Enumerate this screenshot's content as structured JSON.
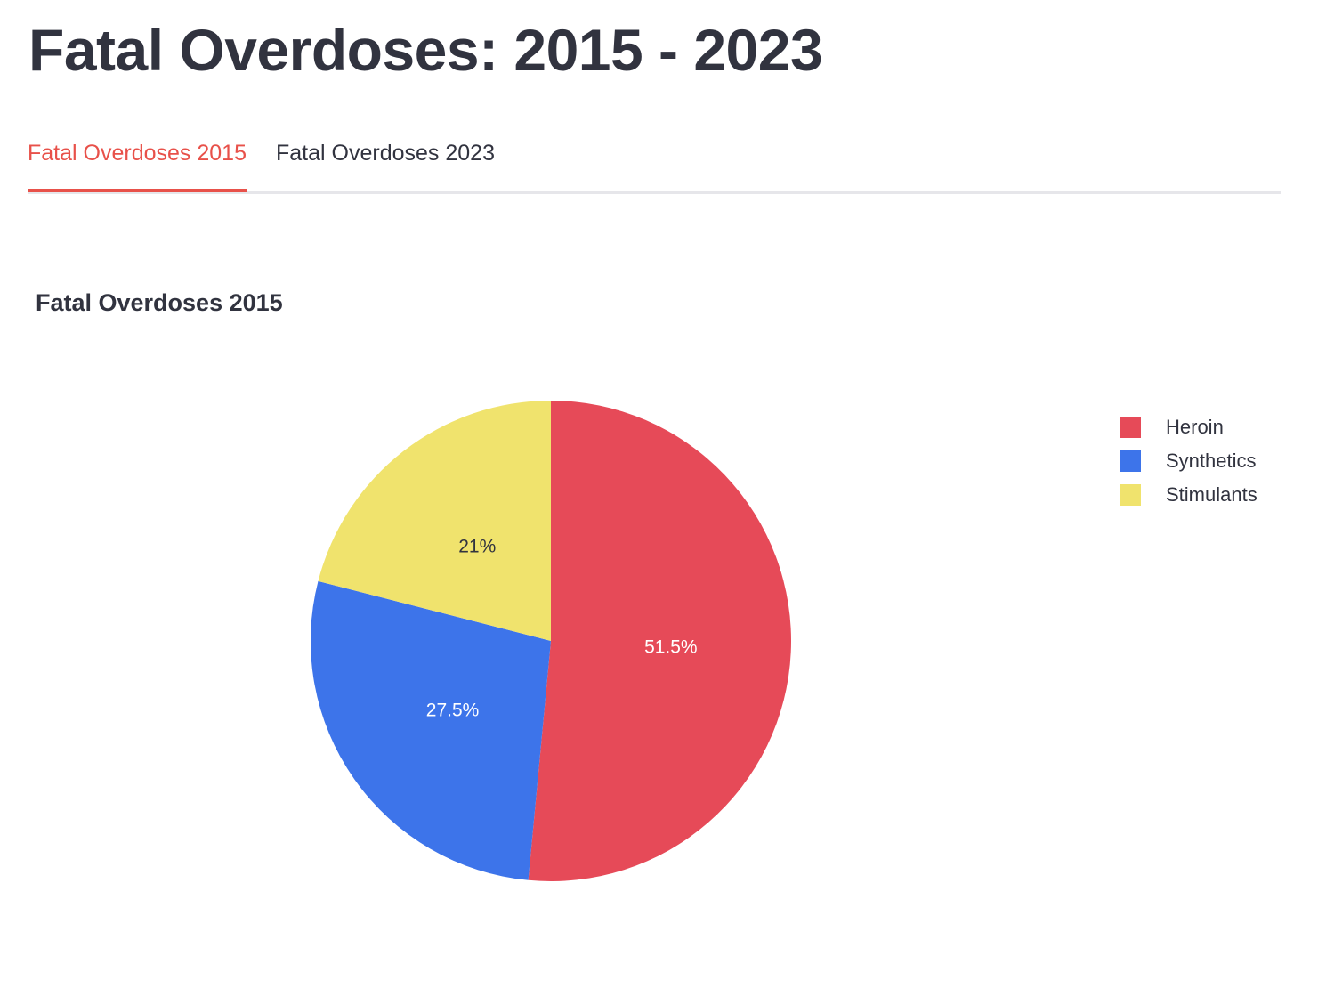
{
  "page": {
    "title": "Fatal Overdoses: 2015 - 2023"
  },
  "tabs": [
    {
      "label": "Fatal Overdoses 2015",
      "active": true
    },
    {
      "label": "Fatal Overdoses 2023",
      "active": false
    }
  ],
  "colors": {
    "accent": "#e8514a",
    "text": "#31333f",
    "tab_border": "#e6e6ea"
  },
  "chart_data": {
    "type": "pie",
    "title": "Fatal Overdoses 2015",
    "categories": [
      "Heroin",
      "Synthetics",
      "Stimulants"
    ],
    "values": [
      51.5,
      27.5,
      21
    ],
    "labels": [
      "51.5%",
      "27.5%",
      "21%"
    ],
    "colors": [
      "#e64a58",
      "#3d74ea",
      "#f0e36d"
    ],
    "label_colors": [
      "#ffffff",
      "#ffffff",
      "#31333f"
    ],
    "legend": {
      "position": "top-right",
      "items": [
        "Heroin",
        "Synthetics",
        "Stimulants"
      ]
    },
    "start": "12 o'clock",
    "direction": "clockwise"
  }
}
